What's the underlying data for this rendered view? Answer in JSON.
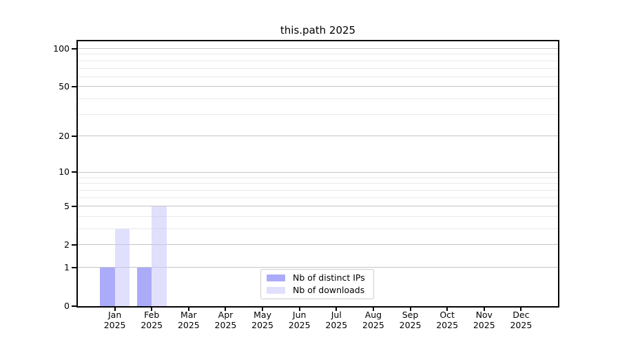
{
  "chart_data": {
    "type": "bar",
    "title": "this.path 2025",
    "categories": [
      "Jan",
      "Feb",
      "Mar",
      "Apr",
      "May",
      "Jun",
      "Jul",
      "Aug",
      "Sep",
      "Oct",
      "Nov",
      "Dec"
    ],
    "x_year_label": "2025",
    "series": [
      {
        "name": "Nb of distinct IPs",
        "color": "#9696f8",
        "opacity": 0.8,
        "values": [
          1,
          1,
          0,
          0,
          0,
          0,
          0,
          0,
          0,
          0,
          0,
          0
        ]
      },
      {
        "name": "Nb of downloads",
        "color": "#c8c8fa",
        "opacity": 0.56,
        "values": [
          3,
          5,
          0,
          0,
          0,
          0,
          0,
          0,
          0,
          0,
          0,
          0
        ]
      }
    ],
    "xlabel": "",
    "ylabel": "",
    "yscale": "log1p",
    "ylim": [
      0,
      114
    ],
    "yticks_labeled": [
      0,
      1,
      2,
      5,
      10,
      20,
      50,
      100
    ],
    "yticks_major_grid": [
      1,
      2,
      5,
      10,
      20,
      50,
      100
    ],
    "yticks_minor_grid": [
      3,
      4,
      6,
      7,
      8,
      9,
      30,
      40,
      60,
      70,
      80,
      90
    ],
    "grid": true,
    "legend_position": "lower center",
    "colors": {
      "major_grid": "#c4c4c4",
      "minor_grid": "#e9e9e9",
      "spine": "#000000",
      "text": "#000000",
      "legend_border": "#cccccc",
      "background": "#ffffff"
    }
  }
}
